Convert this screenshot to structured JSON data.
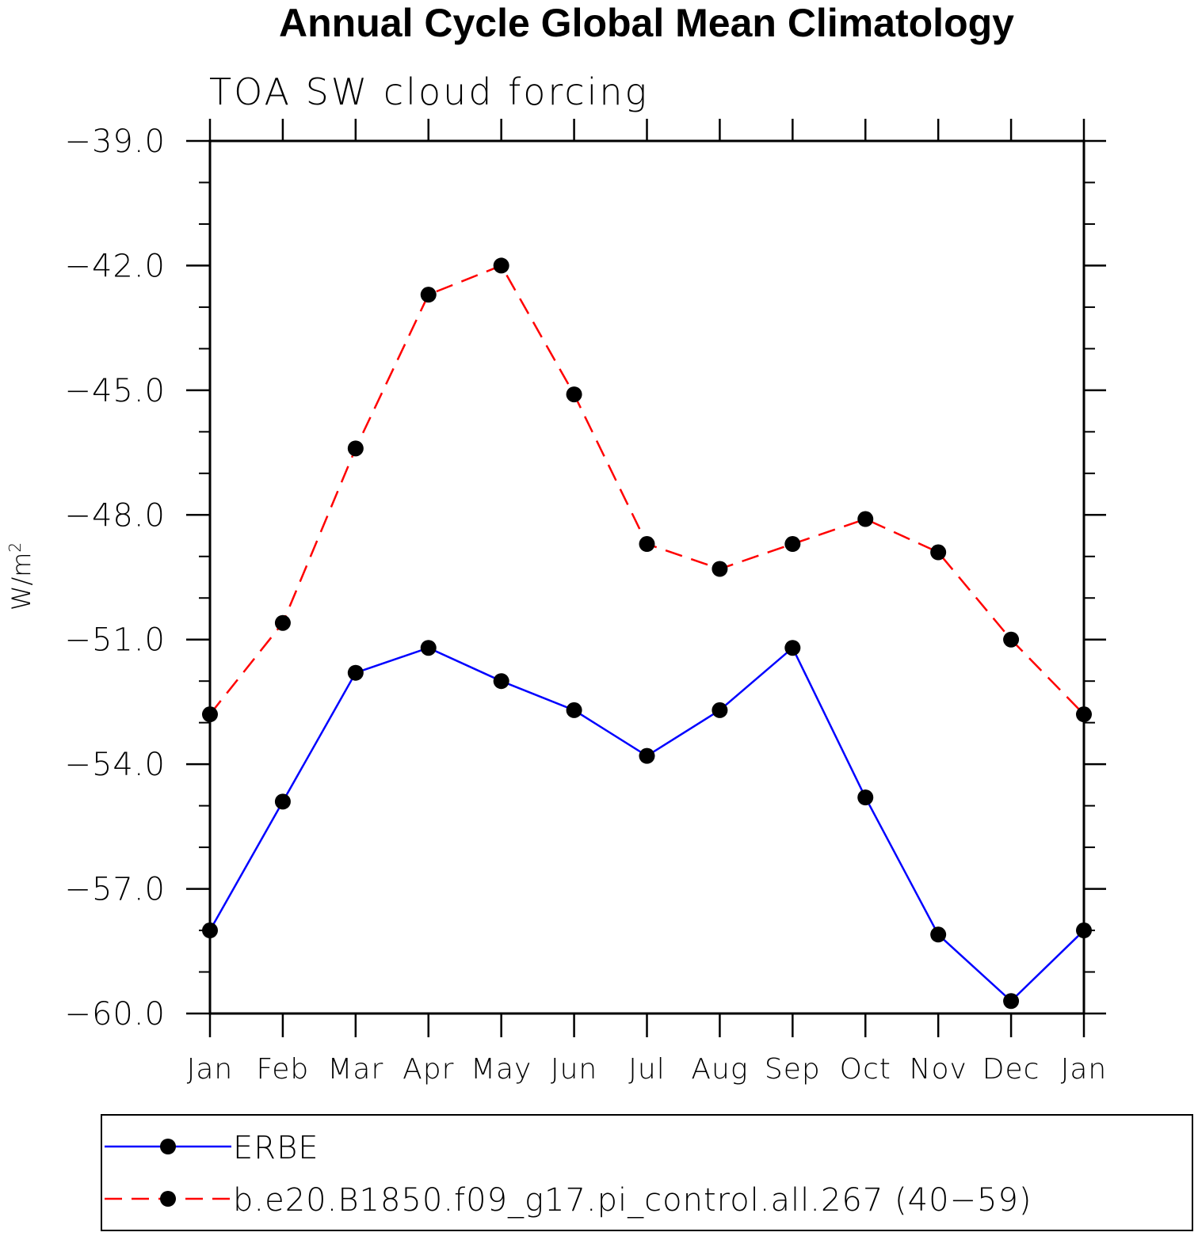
{
  "chart_data": {
    "type": "line",
    "title": "Annual Cycle Global Mean Climatology",
    "subtitle": "TOA SW cloud forcing",
    "ylabel_base": "W/m",
    "ylabel_sup": "2",
    "ylim": [
      -60.0,
      -39.0
    ],
    "yticks": [
      "-39.0",
      "-42.0",
      "-45.0",
      "-48.0",
      "-51.0",
      "-54.0",
      "-57.0",
      "-60.0"
    ],
    "ytick_values": [
      -39,
      -42,
      -45,
      -48,
      -51,
      -54,
      -57,
      -60
    ],
    "categories": [
      "Jan",
      "Feb",
      "Mar",
      "Apr",
      "May",
      "Jun",
      "Jul",
      "Aug",
      "Sep",
      "Oct",
      "Nov",
      "Dec",
      "Jan"
    ],
    "series": [
      {
        "name": "ERBE",
        "color": "#0000ff",
        "dash": "solid",
        "values": [
          -58.0,
          -54.9,
          -51.8,
          -51.2,
          -52.0,
          -52.7,
          -53.8,
          -52.7,
          -51.2,
          -54.8,
          -58.1,
          -59.7,
          -58.0
        ]
      },
      {
        "name": "b.e20.B1850.f09_g17.pi_control.all.267 (40-59)",
        "color": "#ff0000",
        "dash": "dashed",
        "values": [
          -52.8,
          -50.6,
          -46.4,
          -42.7,
          -42.0,
          -45.1,
          -48.7,
          -49.3,
          -48.7,
          -48.1,
          -48.9,
          -51.0,
          -52.8
        ]
      }
    ],
    "legend_position": "bottom"
  }
}
